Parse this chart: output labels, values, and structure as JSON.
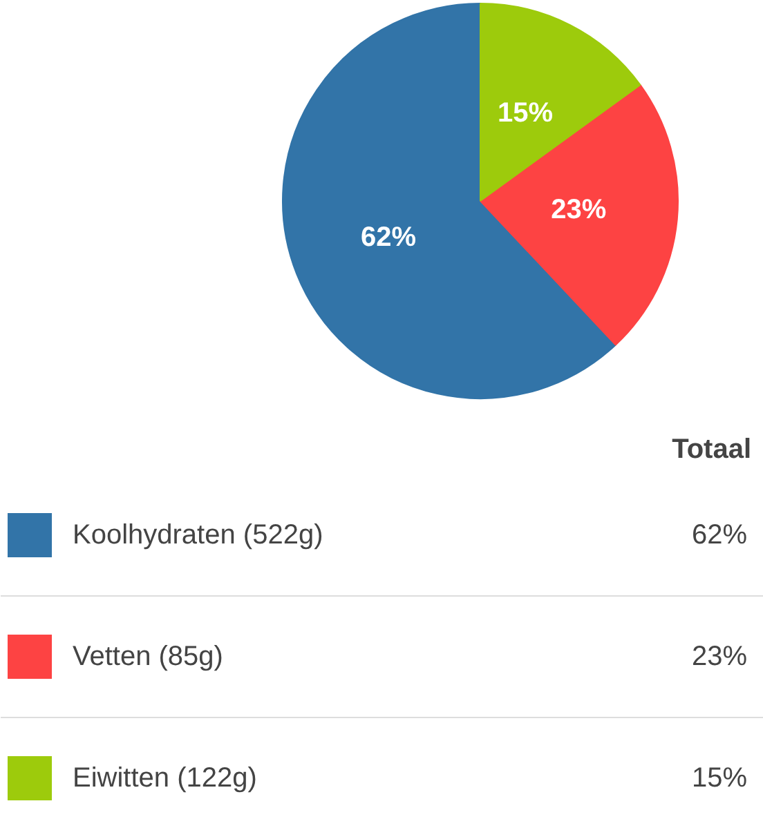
{
  "chart_data": {
    "type": "pie",
    "legend_title": "Totaal",
    "legend": "bottom",
    "data_labels": true,
    "categories": [
      "Koolhydraten (522g)",
      "Vetten (85g)",
      "Eiwitten (122g)"
    ],
    "values": [
      62,
      23,
      15
    ],
    "value_labels": [
      "62%",
      "23%",
      "15%"
    ],
    "colors": [
      "#3274a8",
      "#fd4343",
      "#9dcb0c"
    ]
  }
}
